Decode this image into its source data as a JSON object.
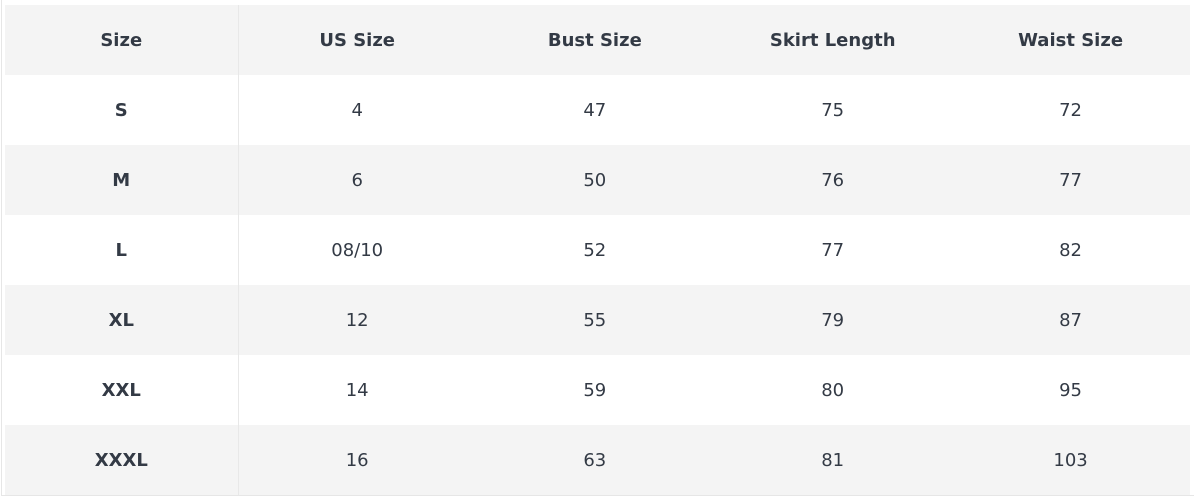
{
  "table": {
    "headers": [
      "Size",
      "US Size",
      "Bust Size",
      "Skirt Length",
      "Waist Size"
    ],
    "rows": [
      [
        "S",
        "4",
        "47",
        "75",
        "72"
      ],
      [
        "M",
        "6",
        "50",
        "76",
        "77"
      ],
      [
        "L",
        "08/10",
        "52",
        "77",
        "82"
      ],
      [
        "XL",
        "12",
        "55",
        "79",
        "87"
      ],
      [
        "XXL",
        "14",
        "59",
        "80",
        "95"
      ],
      [
        "XXXL",
        "16",
        "63",
        "81",
        "103"
      ]
    ]
  },
  "colors": {
    "header_bg": "#f4f4f4",
    "stripe_bg": "#f4f4f4",
    "text": "#333a45"
  }
}
